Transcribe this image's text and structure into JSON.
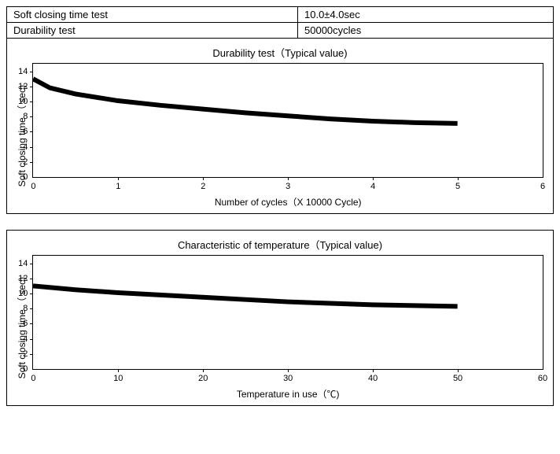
{
  "spec_table": {
    "rows": [
      {
        "label": "Soft closing time test",
        "value": "10.0±4.0sec"
      },
      {
        "label": "Durability test",
        "value": "50000cycles"
      }
    ]
  },
  "chart1": {
    "type": "line",
    "title": "Durability test（Typical value)",
    "ylabel": "Soft closing time\n（  sec)",
    "xlabel": "Number of cycles（X 10000 Cycle)",
    "ylim": [
      0,
      15
    ],
    "ytick_step": 2,
    "y_first_tick": 0,
    "xlim": [
      0,
      6
    ],
    "xtick_step": 1,
    "x_first_tick": 0,
    "line_color": "#000000",
    "line_width": 1,
    "background_color": "#ffffff",
    "label_fontsize": 12,
    "tick_fontsize": 11,
    "title_fontsize": 13,
    "x_data_max": 5,
    "x": [
      0,
      0.2,
      0.5,
      1,
      1.5,
      2,
      2.5,
      3,
      3.5,
      4,
      4.5,
      5
    ],
    "y": [
      13.0,
      11.8,
      11.0,
      10.1,
      9.5,
      9.0,
      8.5,
      8.1,
      7.7,
      7.4,
      7.2,
      7.1
    ]
  },
  "chart2": {
    "type": "line",
    "title": "Characteristic of temperature（Typical value)",
    "ylabel": "Soft closing time\n（  sec)",
    "xlabel": "Temperature in use（℃)",
    "ylim": [
      0,
      15
    ],
    "ytick_step": 2,
    "y_first_tick": 0,
    "xlim": [
      0,
      60
    ],
    "xtick_step": 10,
    "x_first_tick": 0,
    "line_color": "#000000",
    "line_width": 1,
    "background_color": "#ffffff",
    "label_fontsize": 12,
    "tick_fontsize": 11,
    "title_fontsize": 13,
    "x_data_max": 50,
    "x": [
      0,
      5,
      10,
      15,
      20,
      25,
      30,
      35,
      40,
      45,
      50
    ],
    "y": [
      11.0,
      10.5,
      10.1,
      9.8,
      9.5,
      9.2,
      8.9,
      8.7,
      8.5,
      8.4,
      8.3
    ]
  }
}
